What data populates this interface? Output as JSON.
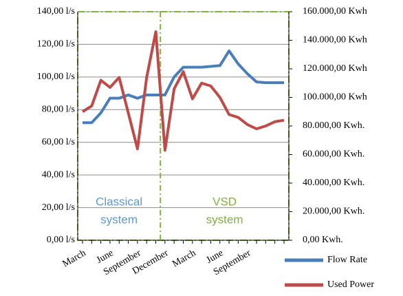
{
  "chart_data": {
    "type": "line",
    "categories": [
      "March",
      null,
      null,
      "June",
      null,
      null,
      "September",
      null,
      null,
      "December",
      null,
      null,
      "March",
      null,
      null,
      "June",
      null,
      null,
      "September",
      null,
      null,
      null,
      null
    ],
    "series": [
      {
        "name": "Flow Rate",
        "color": "#4a7ebb",
        "values": [
          72,
          72,
          78,
          87,
          87,
          89,
          87,
          89,
          89,
          89,
          100,
          106,
          106,
          106,
          106.5,
          107,
          116,
          108,
          102,
          97,
          96.5,
          96.5,
          96.5
        ]
      },
      {
        "name": "Used Power",
        "color": "#be4b48",
        "axis": "y2",
        "values": [
          90000,
          94000,
          112000,
          107000,
          114000,
          89000,
          64000,
          114000,
          146000,
          63000,
          106000,
          118000,
          99000,
          110000,
          108000,
          100000,
          88000,
          86000,
          81000,
          78000,
          80000,
          83000,
          84000
        ]
      }
    ],
    "ylim": [
      0,
      140
    ],
    "yticks": [
      {
        "value": 0,
        "label": "0,00 l/s"
      },
      {
        "value": 20,
        "label": "20,00 l/s"
      },
      {
        "value": 40,
        "label": "40,00 l/s"
      },
      {
        "value": 60,
        "label": "60,00 l/s"
      },
      {
        "value": 80,
        "label": "80,00 l/s"
      },
      {
        "value": 100,
        "label": "100,00 l/s"
      },
      {
        "value": 120,
        "label": "120,00 l/s"
      },
      {
        "value": 140,
        "label": "140,00 l/s"
      }
    ],
    "y2lim": [
      0,
      160000
    ],
    "y2ticks": [
      {
        "value": 0,
        "label": "0,00 Kwh."
      },
      {
        "value": 20000,
        "label": "20.000,00 Kwh."
      },
      {
        "value": 40000,
        "label": "40.000,00 Kwh."
      },
      {
        "value": 60000,
        "label": "60.000,00 Kwh."
      },
      {
        "value": 80000,
        "label": "80.000,00 Kwh."
      },
      {
        "value": 100000,
        "label": "100.000,00 Kwh"
      },
      {
        "value": 120000,
        "label": "120.000,00 Kwh"
      },
      {
        "value": 140000,
        "label": "140.000,00 Kwh"
      },
      {
        "value": 160000,
        "label": "160.000,00 Kwh"
      }
    ],
    "grid": true,
    "legend": "bottom-right",
    "annotations": [
      {
        "lines": [
          "Classical",
          "system"
        ],
        "color": "#5b9bd5"
      },
      {
        "lines": [
          "VSD",
          "system"
        ],
        "color": "#7fb23a"
      }
    ]
  }
}
